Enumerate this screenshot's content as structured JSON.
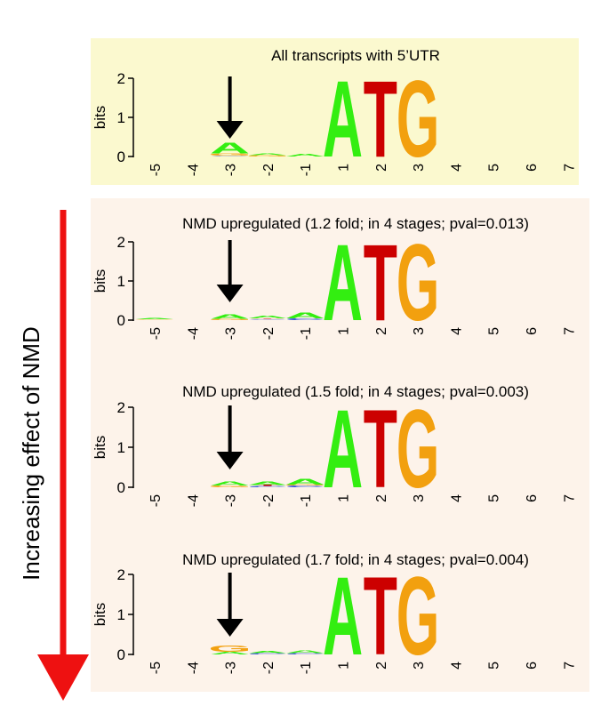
{
  "side_label": "Increasing effect of NMD",
  "colors": {
    "top_panel": "#fbf9cf",
    "lower_panel": "#fdf3ea",
    "arrow": "#ee1111",
    "A": "#33ee11",
    "T": "#cc0000",
    "G": "#f2a00f",
    "C": "#1f3fd4"
  },
  "chart_data": [
    {
      "type": "sequence-logo",
      "title": "All transcripts with 5’UTR",
      "ylabel": "bits",
      "ylim": [
        0,
        2
      ],
      "yticks": [
        "0",
        "1",
        "2"
      ],
      "positions": [
        "-5",
        "-4",
        "-3",
        "-2",
        "-1",
        "1",
        "2",
        "3",
        "4",
        "5",
        "6",
        "7"
      ],
      "marked_position": "-3",
      "stacks": [
        [],
        [],
        [
          {
            "base": "C",
            "bits": 0.02
          },
          {
            "base": "G",
            "bits": 0.06
          },
          {
            "base": "A",
            "bits": 0.28
          }
        ],
        [
          {
            "base": "G",
            "bits": 0.03
          },
          {
            "base": "A",
            "bits": 0.05
          }
        ],
        [
          {
            "base": "A",
            "bits": 0.08
          }
        ],
        [
          {
            "base": "A",
            "bits": 2.0
          }
        ],
        [
          {
            "base": "T",
            "bits": 2.0
          }
        ],
        [
          {
            "base": "G",
            "bits": 2.0
          }
        ],
        [],
        [],
        [],
        []
      ]
    },
    {
      "type": "sequence-logo",
      "title": "NMD upregulated (1.2 fold; in 4 stages; pval=0.013)",
      "ylabel": "bits",
      "ylim": [
        0,
        2
      ],
      "yticks": [
        "0",
        "1",
        "2"
      ],
      "positions": [
        "-5",
        "-4",
        "-3",
        "-2",
        "-1",
        "1",
        "2",
        "3",
        "4",
        "5",
        "6",
        "7"
      ],
      "marked_position": "-3",
      "stacks": [
        [
          {
            "base": "G",
            "bits": 0.02
          },
          {
            "base": "A",
            "bits": 0.03
          }
        ],
        [],
        [
          {
            "base": "G",
            "bits": 0.03
          },
          {
            "base": "A",
            "bits": 0.12
          }
        ],
        [
          {
            "base": "C",
            "bits": 0.02
          },
          {
            "base": "T",
            "bits": 0.02
          },
          {
            "base": "A",
            "bits": 0.07
          }
        ],
        [
          {
            "base": "C",
            "bits": 0.04
          },
          {
            "base": "A",
            "bits": 0.15
          }
        ],
        [
          {
            "base": "A",
            "bits": 2.0
          }
        ],
        [
          {
            "base": "T",
            "bits": 2.0
          }
        ],
        [
          {
            "base": "G",
            "bits": 2.0
          }
        ],
        [],
        [],
        [],
        []
      ]
    },
    {
      "type": "sequence-logo",
      "title": "NMD upregulated (1.5 fold; in 4 stages; pval=0.003)",
      "ylabel": "bits",
      "ylim": [
        0,
        2
      ],
      "yticks": [
        "0",
        "1",
        "2"
      ],
      "positions": [
        "-5",
        "-4",
        "-3",
        "-2",
        "-1",
        "1",
        "2",
        "3",
        "4",
        "5",
        "6",
        "7"
      ],
      "marked_position": "-3",
      "stacks": [
        [],
        [],
        [
          {
            "base": "G",
            "bits": 0.04
          },
          {
            "base": "A",
            "bits": 0.1
          }
        ],
        [
          {
            "base": "C",
            "bits": 0.03
          },
          {
            "base": "T",
            "bits": 0.03
          },
          {
            "base": "A",
            "bits": 0.08
          }
        ],
        [
          {
            "base": "C",
            "bits": 0.04
          },
          {
            "base": "G",
            "bits": 0.03
          },
          {
            "base": "A",
            "bits": 0.14
          }
        ],
        [
          {
            "base": "A",
            "bits": 2.0
          }
        ],
        [
          {
            "base": "T",
            "bits": 2.0
          }
        ],
        [
          {
            "base": "G",
            "bits": 2.0
          }
        ],
        [],
        [],
        [],
        []
      ]
    },
    {
      "type": "sequence-logo",
      "title": "NMD upregulated (1.7 fold; in 4 stages; pval=0.004)",
      "ylabel": "bits",
      "ylim": [
        0,
        2
      ],
      "yticks": [
        "0",
        "1",
        "2"
      ],
      "positions": [
        "-5",
        "-4",
        "-3",
        "-2",
        "-1",
        "1",
        "2",
        "3",
        "4",
        "5",
        "6",
        "7"
      ],
      "marked_position": "-3",
      "stacks": [
        [],
        [],
        [
          {
            "base": "A",
            "bits": 0.07
          },
          {
            "base": "G",
            "bits": 0.16
          }
        ],
        [
          {
            "base": "C",
            "bits": 0.03
          },
          {
            "base": "A",
            "bits": 0.06
          }
        ],
        [
          {
            "base": "C",
            "bits": 0.03
          },
          {
            "base": "A",
            "bits": 0.07
          }
        ],
        [
          {
            "base": "A",
            "bits": 2.0
          }
        ],
        [
          {
            "base": "T",
            "bits": 2.0
          }
        ],
        [
          {
            "base": "G",
            "bits": 2.0
          }
        ],
        [],
        [],
        [],
        []
      ]
    }
  ]
}
